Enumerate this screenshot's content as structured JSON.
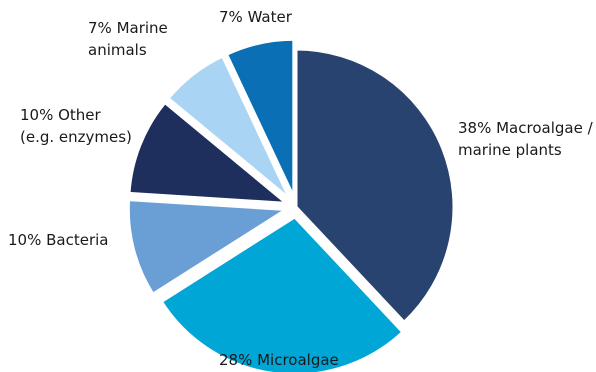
{
  "chart_data": {
    "type": "pie",
    "slices": [
      {
        "label": "38% Macroalgae / marine plants",
        "lines": [
          "38% Macroalgae /",
          "marine plants"
        ],
        "value": 38,
        "color": "#28436f",
        "exploded": false
      },
      {
        "label": "28% Microalgae",
        "lines": [
          "28% Microalgae"
        ],
        "value": 28,
        "color": "#00a6d6",
        "exploded": true
      },
      {
        "label": "10% Bacteria",
        "lines": [
          "10% Bacteria"
        ],
        "value": 10,
        "color": "#6a9fd5",
        "exploded": true
      },
      {
        "label": "10% Other (e.g. enzymes)",
        "lines": [
          "10% Other",
          "(e.g. enzymes)"
        ],
        "value": 10,
        "color": "#1e2f5e",
        "exploded": true
      },
      {
        "label": "7% Marine animals",
        "lines": [
          "7% Marine",
          "animals"
        ],
        "value": 7,
        "color": "#a9d4f4",
        "exploded": true
      },
      {
        "label": "7% Water",
        "lines": [
          "7% Water"
        ],
        "value": 7,
        "color": "#0a6fb5",
        "exploded": true
      }
    ],
    "start_direction": "12 o'clock",
    "order": "clockwise",
    "legend": "none"
  }
}
